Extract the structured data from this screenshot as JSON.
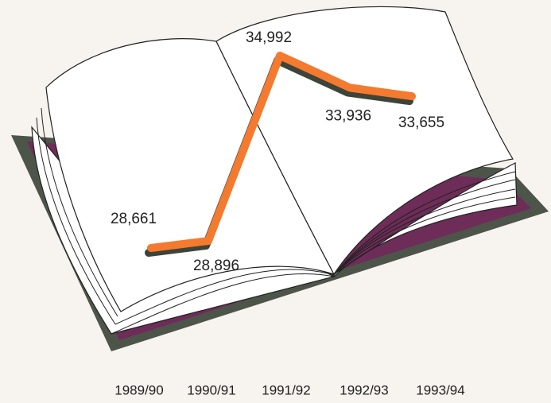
{
  "chart_data": {
    "type": "line",
    "categories": [
      "1989/90",
      "1990/91",
      "1991/92",
      "1992/93",
      "1993/94"
    ],
    "values": [
      28661,
      28896,
      34992,
      33936,
      33655
    ],
    "value_labels": [
      "28,661",
      "28,896",
      "34,992",
      "33,936",
      "33,655"
    ],
    "color": "#f47a30"
  }
}
